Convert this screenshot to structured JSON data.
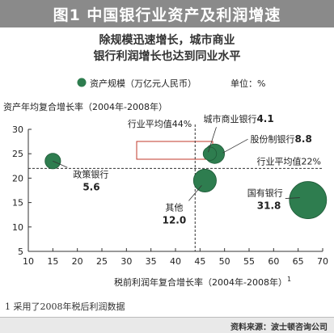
{
  "header": {
    "title": "图1  中国银行业资产及利润增速"
  },
  "subtitle": {
    "line1": "除规模迅速增长，城市商业",
    "line2": "银行利润增长也达到同业水平"
  },
  "footnote": "1  采用了2008年税后利润数据",
  "source": "资料来源：波士顿咨询公司",
  "chart_data": {
    "type": "scatter",
    "title": "",
    "xlabel": "税前利润年复合增长率（2004年-2008年）",
    "xlabel_sup": "1",
    "ylabel": "资产年均复合增长率（2004年-2008年）",
    "xlim": [
      10,
      70
    ],
    "ylim": [
      5,
      30
    ],
    "xticks": [
      10,
      15,
      20,
      25,
      30,
      35,
      40,
      45,
      50,
      55,
      60,
      65,
      70
    ],
    "yticks": [
      5,
      10,
      15,
      20,
      25,
      30
    ],
    "legend": {
      "label": "资产规模（万亿元人民币）",
      "unit": "单位：%",
      "position": "top"
    },
    "grid": false,
    "marker_color": "#2e7d4f",
    "reference_lines": [
      {
        "axis": "y",
        "value": 22,
        "label": "行业平均值22%"
      },
      {
        "axis": "x",
        "value": 44,
        "label": "行业平均值44%"
      }
    ],
    "series": [
      {
        "points": [
          {
            "label": "政策银行",
            "x": 15,
            "y": 23.5,
            "size": 5.6
          },
          {
            "label": "其他",
            "x": 46,
            "y": 19.5,
            "size": 12.0
          },
          {
            "label": "股份制银行",
            "x": 48,
            "y": 25,
            "size": 8.8
          },
          {
            "label": "城市商业银行",
            "x": 47,
            "y": 25,
            "size": 4.1
          },
          {
            "label": "国有银行",
            "x": 67,
            "y": 15.5,
            "size": 31.8
          }
        ]
      }
    ]
  }
}
